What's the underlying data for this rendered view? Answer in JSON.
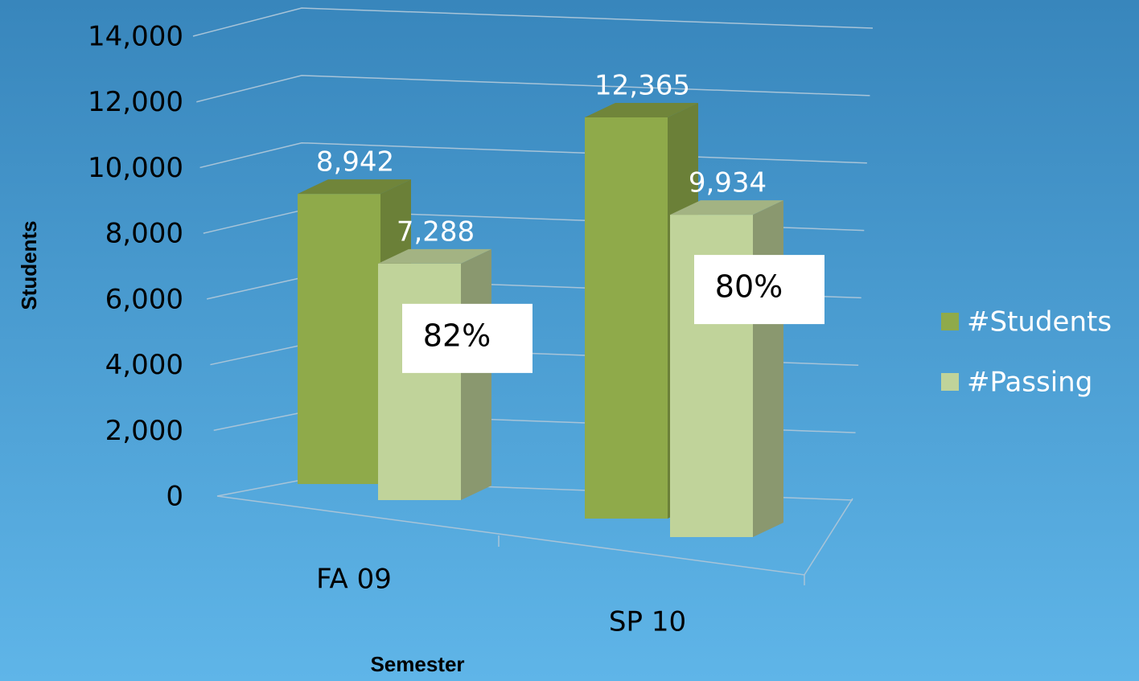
{
  "chart_data": {
    "type": "bar3d",
    "categories": [
      "FA 09",
      "SP 10"
    ],
    "series": [
      {
        "name": "#Students",
        "color": "#8faa4a",
        "values": [
          8942,
          12365
        ],
        "value_labels": [
          "8,942",
          "12,365"
        ]
      },
      {
        "name": "#Passing",
        "color": "#c0d39a",
        "values": [
          7288,
          9934
        ],
        "value_labels": [
          "7,288",
          "9,934"
        ]
      }
    ],
    "annotations": [
      "82%",
      "80%"
    ],
    "xlabel": "Semester",
    "ylabel": "Students",
    "ylim": [
      0,
      14000
    ],
    "yticks": [
      0,
      {
        "value": 2000,
        "label": "2,000"
      },
      {
        "value": 4000,
        "label": "4,000"
      },
      {
        "value": 6000,
        "label": "6,000"
      },
      {
        "value": 8000,
        "label": "8,000"
      },
      {
        "value": 10000,
        "label": "10,000"
      },
      {
        "value": 12000,
        "label": "12,000"
      },
      {
        "value": 14000,
        "label": "14,000"
      }
    ],
    "grid": true,
    "legend": "right"
  }
}
